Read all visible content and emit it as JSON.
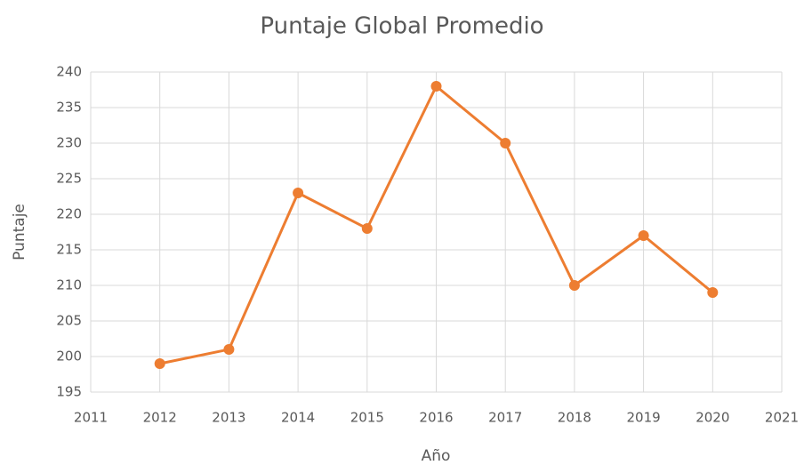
{
  "chart_data": {
    "type": "line",
    "title": "Puntaje Global Promedio",
    "x_label": "Año",
    "y_label": "Puntaje",
    "x": [
      2012,
      2013,
      2014,
      2015,
      2016,
      2017,
      2018,
      2019,
      2020
    ],
    "values": [
      199,
      201,
      223,
      218,
      238,
      230,
      210,
      217,
      209
    ],
    "color": "#ed7d31",
    "xlim": [
      2011,
      2021
    ],
    "xticks": [
      2011,
      2012,
      2013,
      2014,
      2015,
      2016,
      2017,
      2018,
      2019,
      2020,
      2021
    ],
    "ylim": [
      195,
      240
    ],
    "yticks": [
      195,
      200,
      205,
      210,
      215,
      220,
      225,
      230,
      235,
      240
    ],
    "grid": true
  }
}
